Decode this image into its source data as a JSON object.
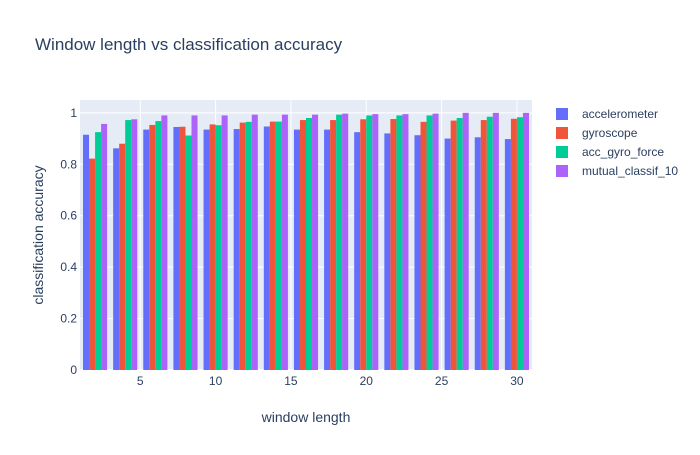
{
  "chart_data": {
    "type": "bar",
    "title": "Window length vs classification accuracy",
    "xlabel": "window length",
    "ylabel": "classification accuracy",
    "x": [
      2,
      4,
      6,
      8,
      10,
      12,
      14,
      16,
      18,
      20,
      22,
      24,
      26,
      28,
      30
    ],
    "xlim": [
      1,
      31
    ],
    "ylim": [
      0,
      1.05
    ],
    "x_ticks": [
      5,
      10,
      15,
      20,
      25,
      30
    ],
    "y_ticks": [
      0,
      0.2,
      0.4,
      0.6,
      0.8,
      1
    ],
    "y_tick_labels": [
      "0",
      "0.2",
      "0.4",
      "0.6",
      "0.8",
      "1"
    ],
    "grid": true,
    "legend_position": "right",
    "plot_background": "#e5ecf6",
    "series": [
      {
        "name": "accelerometer",
        "color": "#636efa",
        "values": [
          0.915,
          0.862,
          0.935,
          0.945,
          0.935,
          0.937,
          0.947,
          0.935,
          0.935,
          0.925,
          0.92,
          0.913,
          0.9,
          0.905,
          0.898
        ]
      },
      {
        "name": "gyroscope",
        "color": "#ef553b",
        "values": [
          0.822,
          0.88,
          0.953,
          0.946,
          0.955,
          0.962,
          0.966,
          0.972,
          0.972,
          0.975,
          0.976,
          0.965,
          0.97,
          0.972,
          0.977
        ]
      },
      {
        "name": "acc_gyro_force",
        "color": "#00cc96",
        "values": [
          0.925,
          0.972,
          0.968,
          0.912,
          0.952,
          0.965,
          0.966,
          0.98,
          0.993,
          0.99,
          0.99,
          0.99,
          0.98,
          0.985,
          0.983
        ]
      },
      {
        "name": "mutual_classif_10",
        "color": "#ab63fa",
        "values": [
          0.957,
          0.975,
          0.99,
          0.99,
          0.99,
          0.993,
          0.993,
          0.993,
          0.997,
          0.995,
          0.995,
          0.997,
          1.0,
          1.0,
          1.0
        ]
      }
    ]
  }
}
